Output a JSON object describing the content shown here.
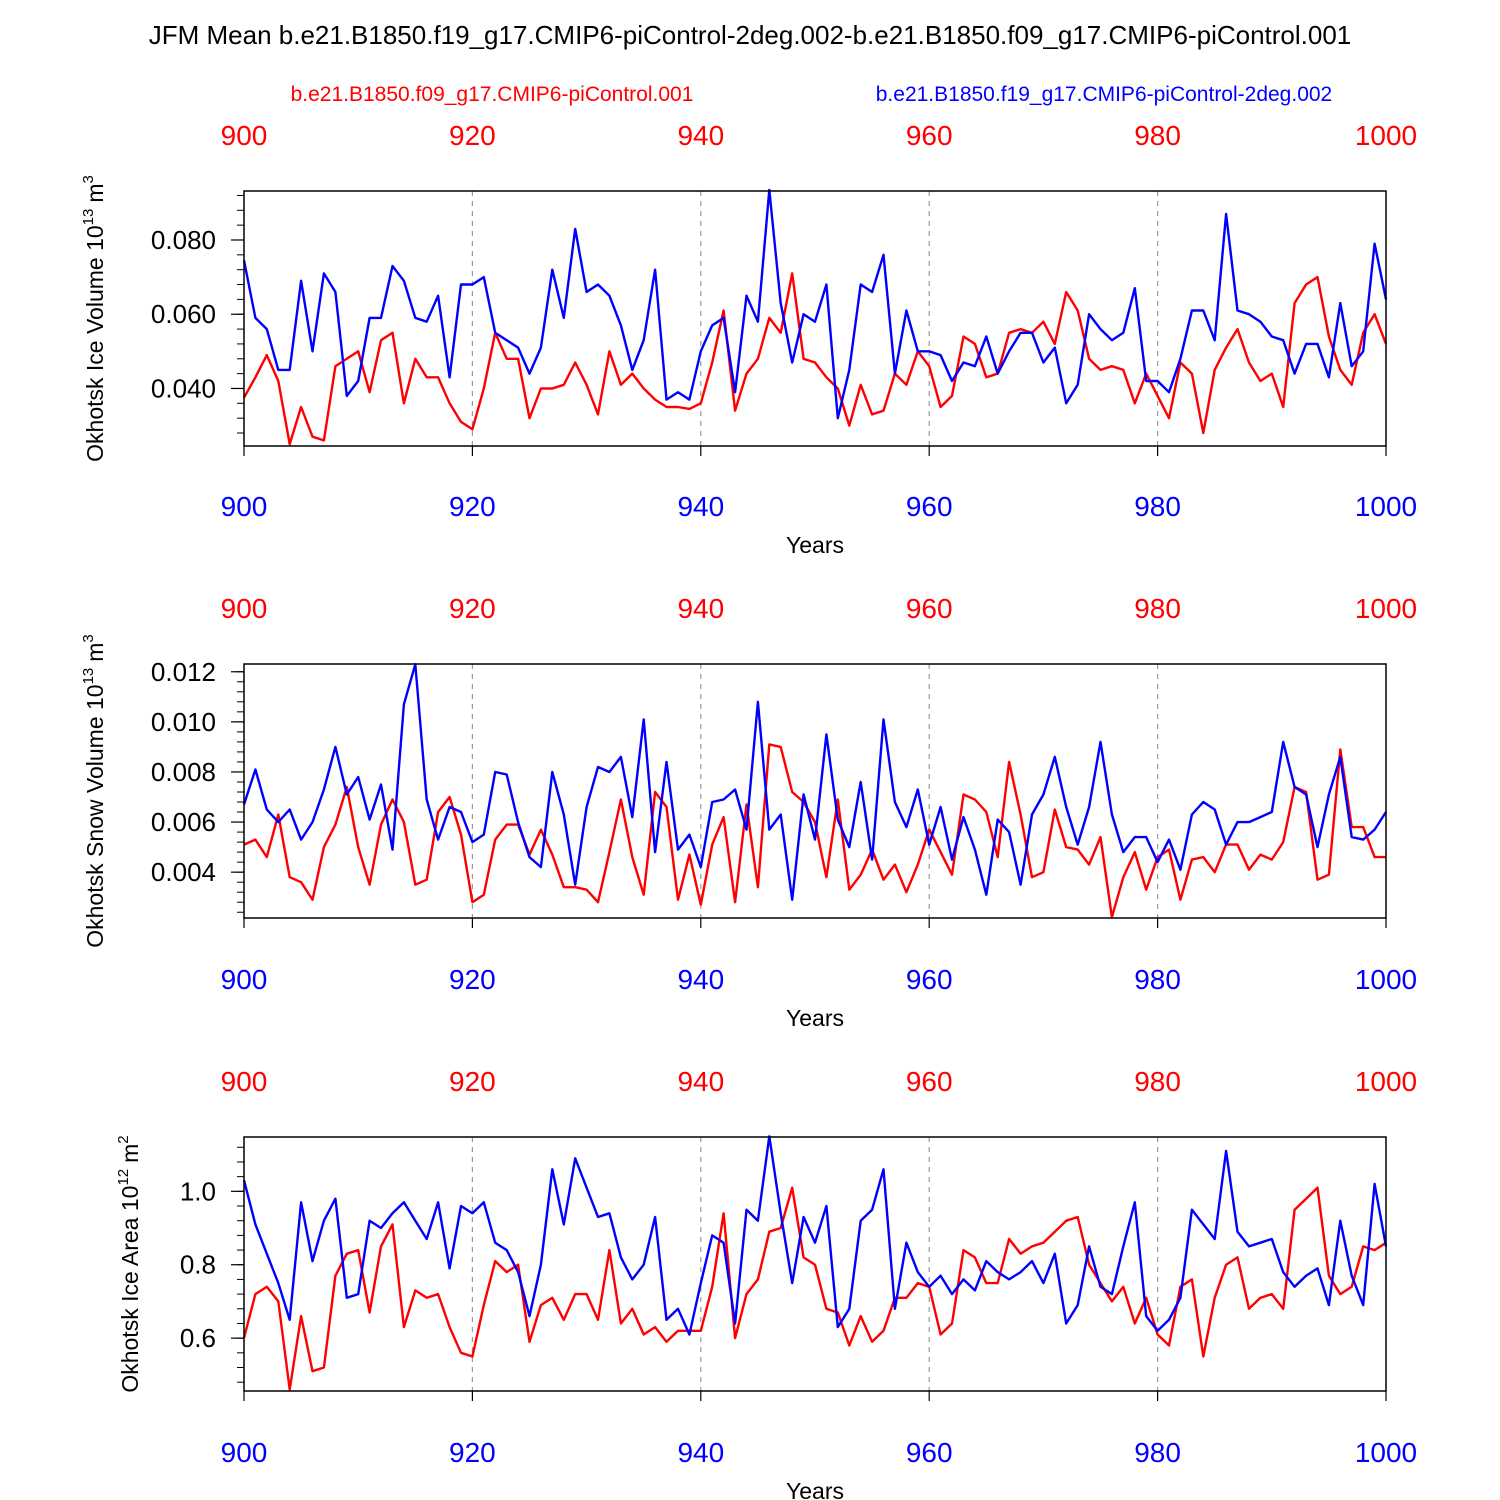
{
  "figure": {
    "title": "JFM Mean b.e21.B1850.f19_g17.CMIP6-piControl-2deg.002-b.e21.B1850.f09_g17.CMIP6-piControl.001",
    "legend": {
      "red": "b.e21.B1850.f09_g17.CMIP6-piControl.001",
      "blue": "b.e21.B1850.f19_g17.CMIP6-piControl-2deg.002"
    },
    "colors": {
      "red": "#ff0000",
      "blue": "#0000ff",
      "axis": "#000000",
      "grid": "#9a9a9a"
    }
  },
  "chart_data": [
    {
      "type": "line",
      "ylabel": "Okhotsk Ice Volume 10",
      "ylabel_exp": "13",
      "ylabel_unit": "m",
      "ylabel_unit_exp": "3",
      "xlabel": "Years",
      "xlim": [
        900,
        1000
      ],
      "ylim": [
        0.0245,
        0.0932
      ],
      "yticks": [
        "0.040",
        "0.060",
        "0.080"
      ],
      "ytick_values": [
        0.04,
        0.06,
        0.08
      ],
      "yminor_step": 0.004,
      "xticks": [
        "900",
        "920",
        "940",
        "960",
        "980",
        "1000"
      ],
      "xtick_values": [
        900,
        920,
        940,
        960,
        980,
        1000
      ],
      "x_start": 900,
      "series": [
        {
          "name": "b.e21.B1850.f09_g17.CMIP6-piControl.001",
          "color": "red",
          "values": [
            0.0375,
            0.043,
            0.049,
            0.042,
            0.025,
            0.035,
            0.027,
            0.026,
            0.046,
            0.048,
            0.05,
            0.039,
            0.053,
            0.055,
            0.036,
            0.048,
            0.043,
            0.043,
            0.036,
            0.031,
            0.029,
            0.04,
            0.055,
            0.048,
            0.048,
            0.032,
            0.04,
            0.04,
            0.041,
            0.047,
            0.041,
            0.033,
            0.05,
            0.041,
            0.044,
            0.04,
            0.037,
            0.035,
            0.035,
            0.0345,
            0.036,
            0.047,
            0.061,
            0.034,
            0.044,
            0.048,
            0.059,
            0.055,
            0.071,
            0.048,
            0.047,
            0.043,
            0.04,
            0.03,
            0.041,
            0.033,
            0.034,
            0.044,
            0.041,
            0.05,
            0.046,
            0.035,
            0.038,
            0.054,
            0.052,
            0.043,
            0.044,
            0.055,
            0.056,
            0.055,
            0.058,
            0.052,
            0.066,
            0.061,
            0.048,
            0.045,
            0.046,
            0.045,
            0.036,
            0.044,
            0.038,
            0.032,
            0.047,
            0.044,
            0.028,
            0.045,
            0.051,
            0.056,
            0.047,
            0.042,
            0.044,
            0.035,
            0.063,
            0.068,
            0.07,
            0.054,
            0.045,
            0.041,
            0.055,
            0.06,
            0.052
          ]
        },
        {
          "name": "b.e21.B1850.f19_g17.CMIP6-piControl-2deg.002",
          "color": "blue",
          "values": [
            0.0745,
            0.059,
            0.056,
            0.045,
            0.045,
            0.069,
            0.05,
            0.071,
            0.066,
            0.038,
            0.042,
            0.059,
            0.059,
            0.073,
            0.069,
            0.059,
            0.058,
            0.065,
            0.043,
            0.068,
            0.068,
            0.07,
            0.055,
            0.053,
            0.051,
            0.044,
            0.051,
            0.072,
            0.059,
            0.083,
            0.066,
            0.068,
            0.065,
            0.057,
            0.045,
            0.053,
            0.072,
            0.037,
            0.039,
            0.037,
            0.05,
            0.057,
            0.059,
            0.039,
            0.065,
            0.058,
            0.0935,
            0.063,
            0.047,
            0.06,
            0.058,
            0.068,
            0.032,
            0.045,
            0.068,
            0.066,
            0.076,
            0.044,
            0.061,
            0.05,
            0.05,
            0.049,
            0.042,
            0.047,
            0.046,
            0.054,
            0.044,
            0.05,
            0.055,
            0.055,
            0.047,
            0.051,
            0.036,
            0.041,
            0.06,
            0.056,
            0.053,
            0.055,
            0.067,
            0.042,
            0.042,
            0.039,
            0.048,
            0.061,
            0.061,
            0.053,
            0.087,
            0.061,
            0.06,
            0.058,
            0.054,
            0.053,
            0.044,
            0.052,
            0.052,
            0.043,
            0.063,
            0.046,
            0.05,
            0.079,
            0.064
          ]
        }
      ]
    },
    {
      "type": "line",
      "ylabel": "Okhotsk Snow Volume 10",
      "ylabel_exp": "13",
      "ylabel_unit": "m",
      "ylabel_unit_exp": "3",
      "xlabel": "Years",
      "xlim": [
        900,
        1000
      ],
      "ylim": [
        0.00217,
        0.01231
      ],
      "yticks": [
        "0.004",
        "0.006",
        "0.008",
        "0.010",
        "0.012"
      ],
      "ytick_values": [
        0.004,
        0.006,
        0.008,
        0.01,
        0.012
      ],
      "yminor_step": 0.0004,
      "xticks": [
        "900",
        "920",
        "940",
        "960",
        "980",
        "1000"
      ],
      "xtick_values": [
        900,
        920,
        940,
        960,
        980,
        1000
      ],
      "x_start": 900,
      "series": [
        {
          "name": "b.e21.B1850.f09_g17.CMIP6-piControl.001",
          "color": "red",
          "values": [
            0.0051,
            0.0053,
            0.0046,
            0.0063,
            0.0038,
            0.0036,
            0.0029,
            0.005,
            0.0059,
            0.0074,
            0.005,
            0.0035,
            0.0059,
            0.0069,
            0.006,
            0.0035,
            0.0037,
            0.0064,
            0.007,
            0.0055,
            0.0028,
            0.0031,
            0.0053,
            0.0059,
            0.0059,
            0.0047,
            0.0057,
            0.0047,
            0.0034,
            0.0034,
            0.0033,
            0.0028,
            0.0048,
            0.0069,
            0.0046,
            0.0031,
            0.0072,
            0.0066,
            0.0029,
            0.0047,
            0.0027,
            0.0051,
            0.0062,
            0.0028,
            0.0067,
            0.0034,
            0.0091,
            0.009,
            0.0072,
            0.0068,
            0.006,
            0.0038,
            0.0069,
            0.0033,
            0.0039,
            0.0049,
            0.0037,
            0.0043,
            0.0032,
            0.0043,
            0.0057,
            0.0048,
            0.0039,
            0.0071,
            0.0069,
            0.0064,
            0.0046,
            0.0084,
            0.0063,
            0.0038,
            0.004,
            0.0065,
            0.005,
            0.0049,
            0.0043,
            0.0054,
            0.0022,
            0.0038,
            0.0048,
            0.0033,
            0.0046,
            0.0049,
            0.0029,
            0.0045,
            0.0046,
            0.004,
            0.0051,
            0.0051,
            0.0041,
            0.0047,
            0.0045,
            0.0052,
            0.0074,
            0.0072,
            0.0037,
            0.0039,
            0.0089,
            0.0058,
            0.0058,
            0.0046,
            0.0046
          ]
        },
        {
          "name": "b.e21.B1850.f19_g17.CMIP6-piControl-2deg.002",
          "color": "blue",
          "values": [
            0.0067,
            0.0081,
            0.0065,
            0.006,
            0.0065,
            0.0053,
            0.006,
            0.0073,
            0.009,
            0.0071,
            0.0078,
            0.0061,
            0.0075,
            0.0049,
            0.0107,
            0.0123,
            0.0069,
            0.0053,
            0.0066,
            0.0064,
            0.0052,
            0.0055,
            0.008,
            0.0079,
            0.006,
            0.0046,
            0.0042,
            0.008,
            0.0063,
            0.0035,
            0.0066,
            0.0082,
            0.008,
            0.0086,
            0.0062,
            0.0101,
            0.0048,
            0.0084,
            0.0049,
            0.0055,
            0.0042,
            0.0068,
            0.0069,
            0.0073,
            0.0057,
            0.0108,
            0.0057,
            0.0063,
            0.0029,
            0.0071,
            0.0053,
            0.0095,
            0.0061,
            0.005,
            0.0076,
            0.0045,
            0.0101,
            0.0068,
            0.0058,
            0.0073,
            0.0051,
            0.0066,
            0.0045,
            0.0062,
            0.0049,
            0.0031,
            0.0061,
            0.0056,
            0.0035,
            0.0063,
            0.0071,
            0.0086,
            0.0066,
            0.0051,
            0.0066,
            0.0092,
            0.0063,
            0.0048,
            0.0054,
            0.0054,
            0.0044,
            0.0053,
            0.0041,
            0.0063,
            0.0068,
            0.0065,
            0.0051,
            0.006,
            0.006,
            0.0062,
            0.0064,
            0.0092,
            0.0074,
            0.0071,
            0.005,
            0.0071,
            0.0086,
            0.0054,
            0.0053,
            0.0057,
            0.0064
          ]
        }
      ]
    },
    {
      "type": "line",
      "ylabel": "Okhotsk Ice Area 10",
      "ylabel_exp": "12",
      "ylabel_unit": "m",
      "ylabel_unit_exp": "2",
      "xlabel": "Years",
      "xlim": [
        900,
        1000
      ],
      "ylim": [
        0.456,
        1.148
      ],
      "yticks": [
        "0.6",
        "0.8",
        "1.0"
      ],
      "ytick_values": [
        0.6,
        0.8,
        1.0
      ],
      "yminor_step": 0.04,
      "xticks": [
        "900",
        "920",
        "940",
        "960",
        "980",
        "1000"
      ],
      "xtick_values": [
        900,
        920,
        940,
        960,
        980,
        1000
      ],
      "x_start": 900,
      "series": [
        {
          "name": "b.e21.B1850.f09_g17.CMIP6-piControl.001",
          "color": "red",
          "values": [
            0.6,
            0.72,
            0.74,
            0.7,
            0.46,
            0.66,
            0.51,
            0.52,
            0.77,
            0.83,
            0.84,
            0.67,
            0.85,
            0.91,
            0.63,
            0.73,
            0.71,
            0.72,
            0.63,
            0.56,
            0.55,
            0.69,
            0.81,
            0.78,
            0.8,
            0.59,
            0.69,
            0.71,
            0.65,
            0.72,
            0.72,
            0.65,
            0.84,
            0.64,
            0.68,
            0.61,
            0.63,
            0.59,
            0.62,
            0.62,
            0.62,
            0.74,
            0.94,
            0.6,
            0.72,
            0.76,
            0.89,
            0.9,
            1.01,
            0.82,
            0.8,
            0.68,
            0.67,
            0.58,
            0.66,
            0.59,
            0.62,
            0.71,
            0.71,
            0.75,
            0.74,
            0.61,
            0.64,
            0.84,
            0.82,
            0.75,
            0.75,
            0.87,
            0.83,
            0.85,
            0.86,
            0.89,
            0.92,
            0.93,
            0.8,
            0.75,
            0.7,
            0.74,
            0.64,
            0.71,
            0.61,
            0.58,
            0.74,
            0.76,
            0.55,
            0.71,
            0.8,
            0.82,
            0.68,
            0.71,
            0.72,
            0.68,
            0.95,
            0.98,
            1.01,
            0.77,
            0.72,
            0.74,
            0.85,
            0.84,
            0.86
          ]
        },
        {
          "name": "b.e21.B1850.f19_g17.CMIP6-piControl-2deg.002",
          "color": "blue",
          "values": [
            1.03,
            0.91,
            0.83,
            0.75,
            0.65,
            0.97,
            0.81,
            0.92,
            0.98,
            0.71,
            0.72,
            0.92,
            0.9,
            0.94,
            0.97,
            0.92,
            0.87,
            0.97,
            0.79,
            0.96,
            0.94,
            0.97,
            0.86,
            0.84,
            0.78,
            0.66,
            0.8,
            1.06,
            0.91,
            1.09,
            1.01,
            0.93,
            0.94,
            0.82,
            0.76,
            0.8,
            0.93,
            0.65,
            0.68,
            0.61,
            0.75,
            0.88,
            0.86,
            0.64,
            0.95,
            0.92,
            1.15,
            0.94,
            0.75,
            0.93,
            0.86,
            0.96,
            0.63,
            0.68,
            0.92,
            0.95,
            1.06,
            0.68,
            0.86,
            0.78,
            0.74,
            0.77,
            0.72,
            0.76,
            0.73,
            0.81,
            0.78,
            0.76,
            0.78,
            0.81,
            0.75,
            0.83,
            0.64,
            0.69,
            0.85,
            0.74,
            0.72,
            0.85,
            0.97,
            0.66,
            0.62,
            0.65,
            0.71,
            0.95,
            0.91,
            0.87,
            1.11,
            0.89,
            0.85,
            0.86,
            0.87,
            0.78,
            0.74,
            0.77,
            0.79,
            0.69,
            0.92,
            0.77,
            0.69,
            1.02,
            0.85
          ]
        }
      ]
    }
  ]
}
